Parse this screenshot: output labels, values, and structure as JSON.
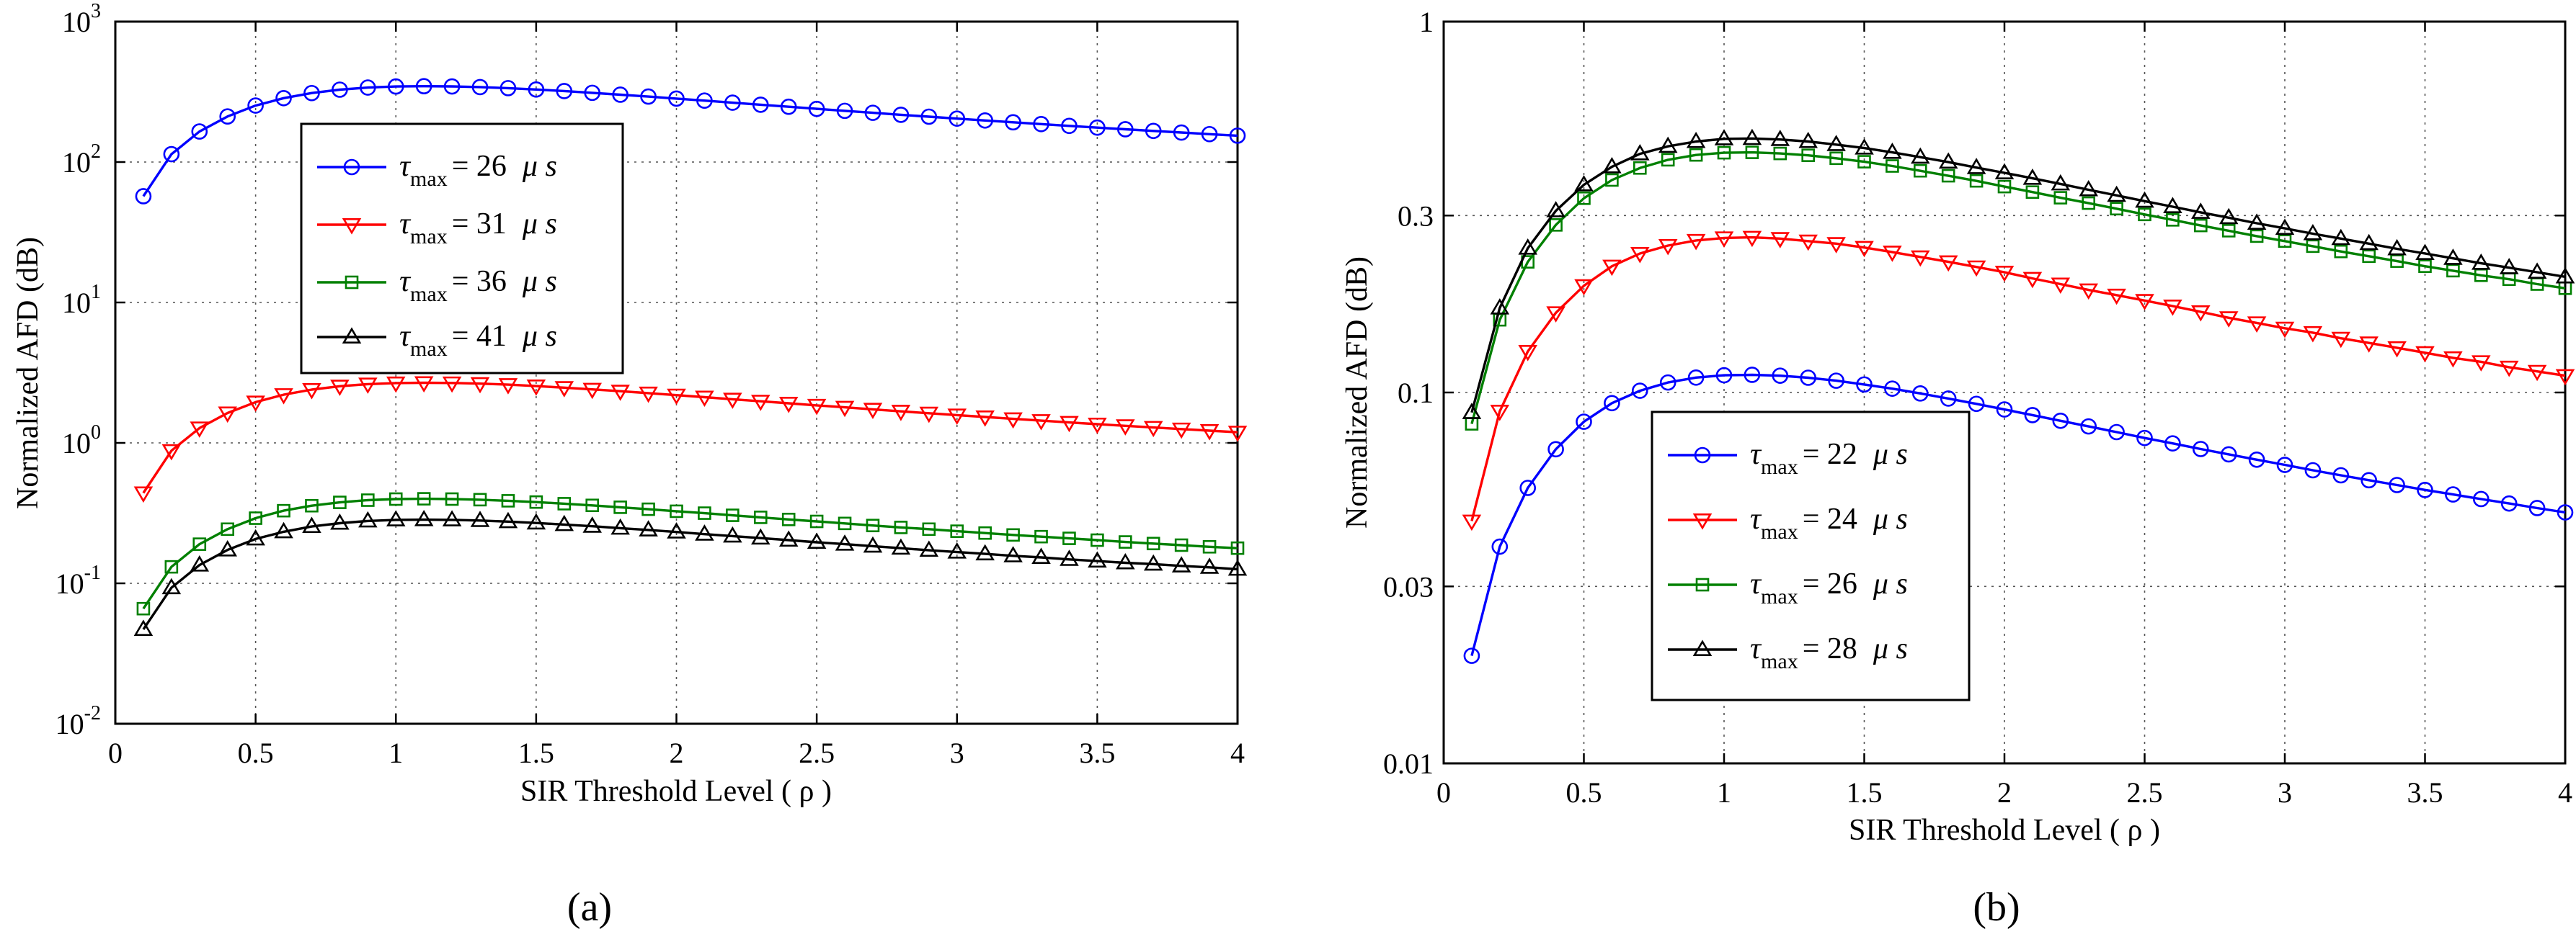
{
  "figure": {
    "captions": [
      "(a)",
      "(b)"
    ]
  },
  "chart_data": [
    {
      "type": "line",
      "panel": "(a)",
      "xlabel": "SIR Threshold Level ( ρ )",
      "ylabel": "Normalized AFD (dB)",
      "xlim": [
        0,
        4
      ],
      "ylim": [
        0.01,
        1000
      ],
      "yscale": "log",
      "grid": true,
      "legend_position": "top-center",
      "x_ticks": [
        0,
        0.5,
        1,
        1.5,
        2,
        2.5,
        3,
        3.5,
        4
      ],
      "x_tick_labels": [
        "0",
        "0.5",
        "1",
        "1.5",
        "2",
        "2.5",
        "3",
        "3.5",
        "4"
      ],
      "y_ticks": [
        0.01,
        0.1,
        1,
        10,
        100,
        1000
      ],
      "y_tick_labels": [
        {
          "base": "10",
          "exp": "-2"
        },
        {
          "base": "10",
          "exp": "-1"
        },
        {
          "base": "10",
          "exp": "0"
        },
        {
          "base": "10",
          "exp": "1"
        },
        {
          "base": "10",
          "exp": "2"
        },
        {
          "base": "10",
          "exp": "3"
        }
      ],
      "x": [
        0.1,
        0.2,
        0.3,
        0.4,
        0.5,
        0.6,
        0.7,
        0.8,
        0.9,
        1.0,
        1.1,
        1.2,
        1.3,
        1.4,
        1.5,
        1.6,
        1.7,
        1.8,
        1.9,
        2.0,
        2.1,
        2.2,
        2.3,
        2.4,
        2.5,
        2.6,
        2.7,
        2.8,
        2.9,
        3.0,
        3.1,
        3.2,
        3.3,
        3.4,
        3.5,
        3.6,
        3.7,
        3.8,
        3.9,
        4.0
      ],
      "series": [
        {
          "name": "τmax = 26 μs",
          "legend_sym": "τ",
          "legend_sub": "max",
          "legend_val": "= 26",
          "legend_unit": "μ s",
          "color": "#0000ff",
          "marker": "circle",
          "values": [
            57.1,
            113.8,
            165.0,
            211.1,
            252.5,
            285.1,
            309.8,
            327.6,
            339.2,
            345.1,
            346.6,
            345.4,
            341.8,
            336.0,
            328.5,
            320.2,
            311.1,
            301.8,
            292.6,
            283.0,
            273.8,
            264.7,
            256.0,
            247.6,
            239.2,
            231.6,
            224.2,
            217.0,
            210.4,
            203.9,
            197.7,
            191.8,
            186.3,
            180.9,
            175.9,
            171.2,
            166.6,
            162.2,
            158.0,
            154.1
          ]
        },
        {
          "name": "τmax = 31 μs",
          "legend_sym": "τ",
          "legend_sub": "max",
          "legend_val": "= 31",
          "legend_unit": "μ s",
          "color": "#ff0000",
          "marker": "triangle-down",
          "values": [
            0.44,
            0.88,
            1.276,
            1.632,
            1.951,
            2.204,
            2.395,
            2.533,
            2.622,
            2.668,
            2.679,
            2.67,
            2.642,
            2.598,
            2.54,
            2.475,
            2.405,
            2.334,
            2.262,
            2.188,
            2.117,
            2.046,
            1.979,
            1.914,
            1.85,
            1.791,
            1.733,
            1.678,
            1.627,
            1.577,
            1.529,
            1.483,
            1.44,
            1.398,
            1.36,
            1.323,
            1.288,
            1.254,
            1.222,
            1.191
          ]
        },
        {
          "name": "τmax = 36 μs",
          "legend_sym": "τ",
          "legend_sub": "max",
          "legend_val": "= 36",
          "legend_unit": "μ s",
          "color": "#008000",
          "marker": "square",
          "values": [
            0.066,
            0.131,
            0.19,
            0.243,
            0.291,
            0.329,
            0.357,
            0.377,
            0.391,
            0.398,
            0.4,
            0.398,
            0.394,
            0.387,
            0.379,
            0.369,
            0.359,
            0.348,
            0.337,
            0.326,
            0.316,
            0.305,
            0.295,
            0.285,
            0.276,
            0.267,
            0.258,
            0.25,
            0.243,
            0.235,
            0.228,
            0.221,
            0.215,
            0.209,
            0.203,
            0.197,
            0.192,
            0.187,
            0.182,
            0.178
          ]
        },
        {
          "name": "τmax = 41 μs",
          "legend_sym": "τ",
          "legend_sub": "max",
          "legend_val": "= 41",
          "legend_unit": "μ s",
          "color": "#000000",
          "marker": "triangle-up",
          "values": [
            0.047,
            0.093,
            0.135,
            0.173,
            0.207,
            0.233,
            0.254,
            0.268,
            0.278,
            0.283,
            0.284,
            0.283,
            0.28,
            0.275,
            0.269,
            0.262,
            0.255,
            0.247,
            0.24,
            0.232,
            0.224,
            0.217,
            0.21,
            0.203,
            0.196,
            0.19,
            0.184,
            0.178,
            0.172,
            0.167,
            0.162,
            0.157,
            0.153,
            0.148,
            0.144,
            0.14,
            0.137,
            0.133,
            0.13,
            0.126
          ]
        }
      ]
    },
    {
      "type": "line",
      "panel": "(b)",
      "xlabel": "SIR Threshold Level ( ρ )",
      "ylabel": "Normalized AFD (dB)",
      "xlim": [
        0,
        4
      ],
      "ylim": [
        0.01,
        1
      ],
      "yscale": "log",
      "grid": true,
      "legend_position": "bottom-center",
      "x_ticks": [
        0,
        0.5,
        1,
        1.5,
        2,
        2.5,
        3,
        3.5,
        4
      ],
      "x_tick_labels": [
        "0",
        "0.5",
        "1",
        "1.5",
        "2",
        "2.5",
        "3",
        "3.5",
        "4"
      ],
      "y_ticks": [
        0.01,
        0.03,
        0.1,
        0.3,
        1
      ],
      "y_tick_labels": [
        "0.01",
        "0.03",
        "0.1",
        "0.3",
        "1"
      ],
      "x": [
        0.1,
        0.2,
        0.3,
        0.4,
        0.5,
        0.6,
        0.7,
        0.8,
        0.9,
        1.0,
        1.1,
        1.2,
        1.3,
        1.4,
        1.5,
        1.6,
        1.7,
        1.8,
        1.9,
        2.0,
        2.1,
        2.2,
        2.3,
        2.4,
        2.5,
        2.6,
        2.7,
        2.8,
        2.9,
        3.0,
        3.1,
        3.2,
        3.3,
        3.4,
        3.5,
        3.6,
        3.7,
        3.8,
        3.9,
        4.0
      ],
      "series": [
        {
          "name": "τmax = 22 μs",
          "legend_sym": "τ",
          "legend_sub": "max",
          "legend_val": "= 22",
          "legend_unit": "μ s",
          "color": "#0000ff",
          "marker": "circle",
          "values": [
            0.0195,
            0.0384,
            0.0553,
            0.0703,
            0.0834,
            0.0936,
            0.1011,
            0.1064,
            0.1097,
            0.1113,
            0.1116,
            0.111,
            0.1096,
            0.1076,
            0.1051,
            0.1024,
            0.0994,
            0.0963,
            0.0932,
            0.09,
            0.0869,
            0.0839,
            0.081,
            0.0782,
            0.0754,
            0.0729,
            0.0704,
            0.0681,
            0.0659,
            0.0638,
            0.0617,
            0.0598,
            0.058,
            0.0563,
            0.0546,
            0.0531,
            0.0516,
            0.0502,
            0.0488,
            0.0475
          ]
        },
        {
          "name": "τmax = 24 μs",
          "legend_sym": "τ",
          "legend_sub": "max",
          "legend_val": "= 24",
          "legend_unit": "μ s",
          "color": "#ff0000",
          "marker": "triangle-down",
          "values": [
            0.045,
            0.089,
            0.129,
            0.164,
            0.194,
            0.219,
            0.237,
            0.249,
            0.257,
            0.261,
            0.262,
            0.26,
            0.256,
            0.252,
            0.246,
            0.239,
            0.232,
            0.225,
            0.218,
            0.211,
            0.203,
            0.196,
            0.189,
            0.183,
            0.177,
            0.171,
            0.165,
            0.159,
            0.154,
            0.149,
            0.145,
            0.14,
            0.136,
            0.132,
            0.128,
            0.124,
            0.121,
            0.117,
            0.114,
            0.111
          ]
        },
        {
          "name": "τmax = 26 μs",
          "legend_sym": "τ",
          "legend_sub": "max",
          "legend_val": "= 26",
          "legend_unit": "μ s",
          "color": "#008000",
          "marker": "square",
          "values": [
            0.0823,
            0.157,
            0.225,
            0.283,
            0.334,
            0.374,
            0.403,
            0.424,
            0.437,
            0.443,
            0.444,
            0.441,
            0.436,
            0.428,
            0.419,
            0.408,
            0.396,
            0.384,
            0.372,
            0.359,
            0.347,
            0.335,
            0.324,
            0.313,
            0.302,
            0.292,
            0.282,
            0.273,
            0.264,
            0.256,
            0.248,
            0.24,
            0.233,
            0.226,
            0.219,
            0.213,
            0.207,
            0.202,
            0.196,
            0.191
          ]
        },
        {
          "name": "τmax = 28 μs",
          "legend_sym": "τ",
          "legend_sub": "max",
          "legend_val": "= 28",
          "legend_unit": "μ s",
          "color": "#000000",
          "marker": "triangle-up",
          "values": [
            0.0883,
            0.169,
            0.245,
            0.309,
            0.363,
            0.406,
            0.44,
            0.461,
            0.475,
            0.483,
            0.484,
            0.481,
            0.475,
            0.466,
            0.456,
            0.444,
            0.431,
            0.418,
            0.404,
            0.391,
            0.378,
            0.365,
            0.352,
            0.34,
            0.328,
            0.317,
            0.306,
            0.296,
            0.286,
            0.277,
            0.268,
            0.26,
            0.252,
            0.244,
            0.237,
            0.23,
            0.223,
            0.217,
            0.211,
            0.205
          ]
        }
      ]
    }
  ]
}
